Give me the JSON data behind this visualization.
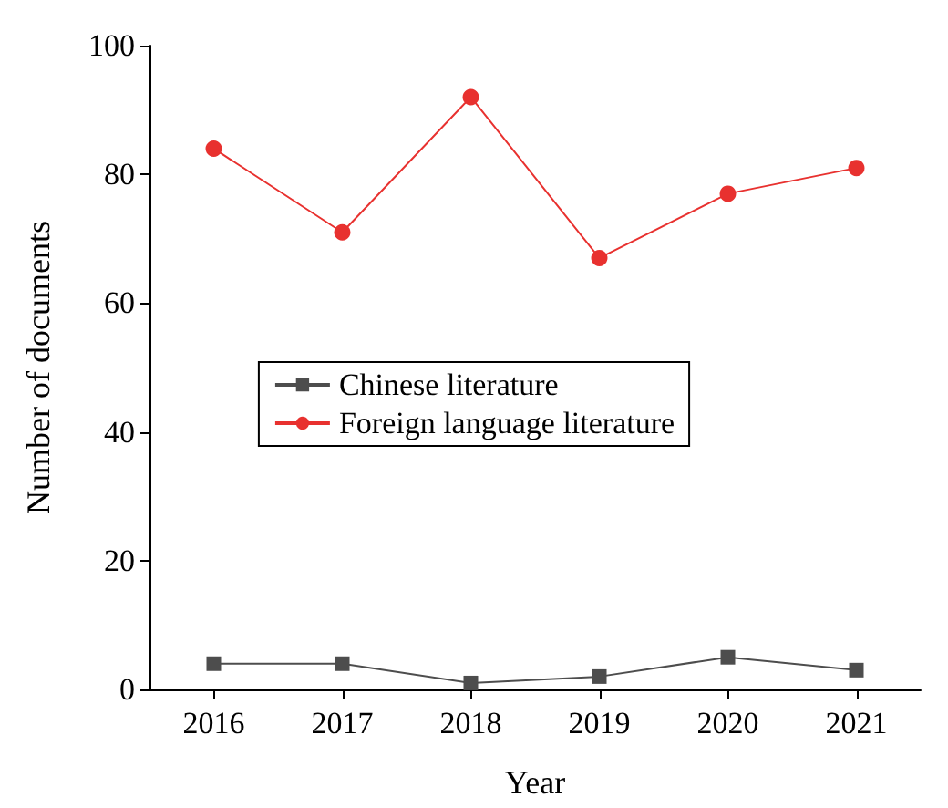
{
  "chart_data": {
    "type": "line",
    "xlabel": "Year",
    "ylabel": "Number of documents",
    "x": [
      2016,
      2017,
      2018,
      2019,
      2020,
      2021
    ],
    "xlim": [
      2015.5,
      2021.5
    ],
    "xticks": [
      2016,
      2017,
      2018,
      2019,
      2020,
      2021
    ],
    "ylim": [
      0,
      100
    ],
    "yticks": [
      0,
      20,
      40,
      60,
      80,
      100
    ],
    "grid": false,
    "legend": "center",
    "series": [
      {
        "name": "Chinese literature",
        "color": "#4d4d4d",
        "marker": "square",
        "values": [
          4,
          4,
          1,
          2,
          5,
          3
        ]
      },
      {
        "name": "Foreign language literature",
        "color": "#e8312f",
        "marker": "circle",
        "values": [
          84,
          71,
          92,
          67,
          77,
          81
        ]
      }
    ]
  }
}
